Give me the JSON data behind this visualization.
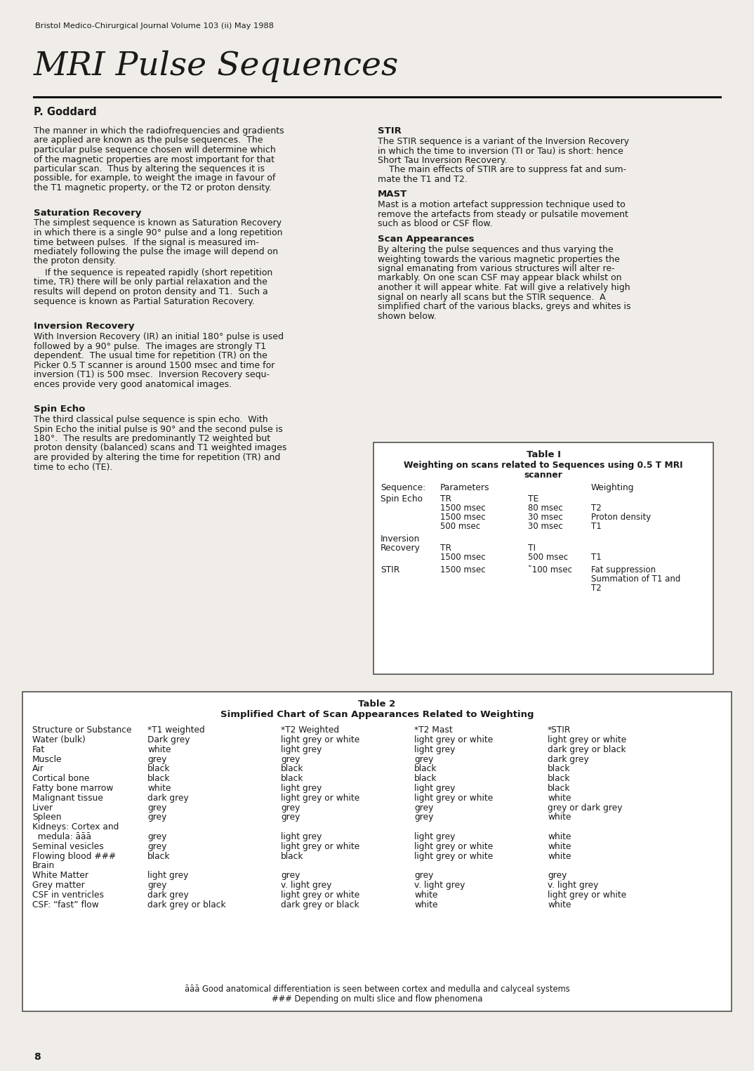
{
  "bg_color": "#f0ede8",
  "text_color": "#1a1a1a",
  "header_text": "Bristol Medico-Chirurgical Journal Volume 103 (ii) May 1988",
  "title": "MRI Pulse Sequences",
  "author": "P. Goddard",
  "page_number": "8"
}
